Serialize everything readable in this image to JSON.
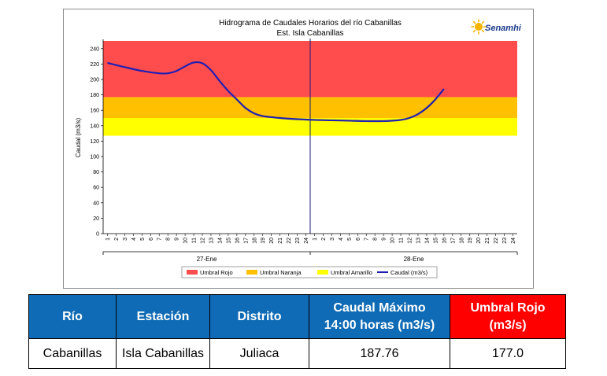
{
  "colors": {
    "umbral_rojo": "#ff4d4d",
    "umbral_naranja": "#ffc000",
    "umbral_amarillo": "#ffff00",
    "caudal_line": "#1f1fb4",
    "table_header": "#0f6bb5",
    "table_header_red": "#ff0000"
  },
  "logo": {
    "text": "Senamhi",
    "icon": "sun-logo-icon"
  },
  "chart_data": {
    "type": "line",
    "title": "Hidrograma de Caudales Horarios del río Cabanillas",
    "subtitle": "Est. Isla Cabanillas",
    "ylabel": "Caudal (m3/s)",
    "ylim": [
      0,
      250
    ],
    "yticks": [
      0,
      20,
      40,
      60,
      80,
      100,
      120,
      140,
      160,
      180,
      200,
      220,
      240
    ],
    "hour_ticks": [
      "1",
      "2",
      "3",
      "4",
      "5",
      "6",
      "7",
      "8",
      "9",
      "10",
      "11",
      "12",
      "13",
      "14",
      "15",
      "16",
      "17",
      "18",
      "19",
      "20",
      "21",
      "22",
      "23",
      "24"
    ],
    "days": [
      "27-Ene",
      "28-Ene"
    ],
    "thresholds": [
      {
        "name": "Umbral Rojo",
        "from": 177,
        "to": 250,
        "color": "#ff4d4d"
      },
      {
        "name": "Umbral Naranja",
        "from": 150,
        "to": 177,
        "color": "#ffc000"
      },
      {
        "name": "Umbral Amarillo",
        "from": 127,
        "to": 150,
        "color": "#ffff00"
      }
    ],
    "series": [
      {
        "name": "Caudal (m3/s)",
        "color": "#1f1fb4",
        "x": [
          0,
          2,
          4,
          6,
          7,
          8,
          9,
          10,
          11,
          12,
          13,
          14,
          15,
          16,
          17,
          18,
          20,
          22,
          24,
          26,
          28,
          30,
          32,
          34,
          35,
          36,
          37,
          38,
          39
        ],
        "y": [
          221.5,
          216,
          211,
          208,
          208,
          211,
          217,
          222,
          221,
          212,
          198,
          185,
          174,
          163,
          156,
          152.5,
          150,
          148.5,
          147.5,
          147,
          146.5,
          146,
          146,
          147.5,
          150,
          155,
          163,
          174,
          187.76
        ]
      }
    ],
    "legend": [
      "Umbral Rojo",
      "Umbral Naranja",
      "Umbral Amarillo",
      "Caudal (m3/s)"
    ],
    "legend_position": "bottom",
    "grid": false
  },
  "table": {
    "headers": {
      "rio": "Río",
      "estacion": "Estación",
      "distrito": "Distrito",
      "caudal_max_line1": "Caudal Máximo",
      "caudal_max_line2": "14:00 horas (m3/s)",
      "umbral_rojo_line1": "Umbral Rojo",
      "umbral_rojo_line2": "(m3/s)"
    },
    "row": {
      "rio": "Cabanillas",
      "estacion": "Isla Cabanillas",
      "distrito": "Juliaca",
      "caudal_max": "187.76",
      "umbral_rojo": "177.0"
    }
  }
}
